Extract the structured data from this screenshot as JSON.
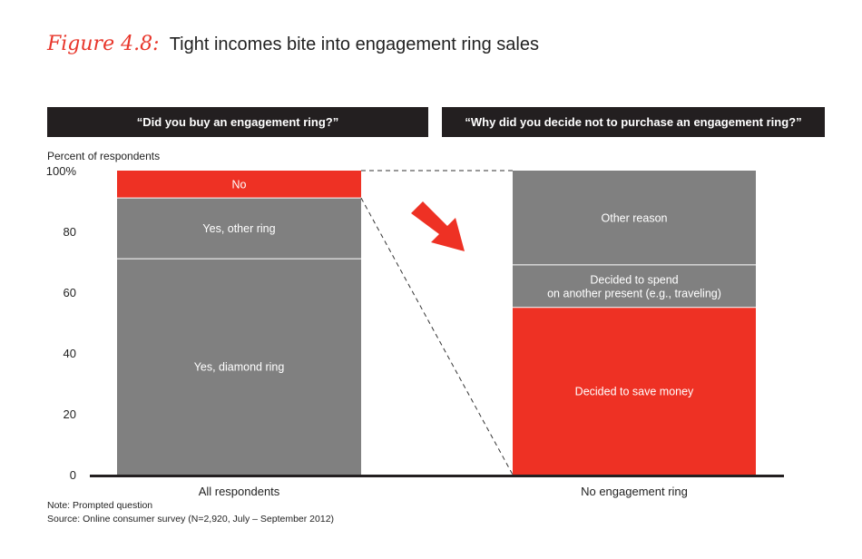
{
  "title": {
    "figure_label": "Figure 4.8:",
    "text": "Tight incomes bite into engagement ring sales"
  },
  "panels": [
    {
      "header": "“Did you buy an engagement ring?”"
    },
    {
      "header": "“Why did you decide not to purchase an engagement ring?”"
    }
  ],
  "notes": {
    "note": "Note: Prompted question",
    "source": "Source: Online consumer survey (N=2,920, July – September 2012)"
  },
  "colors": {
    "gray": "#808080",
    "red": "#ee3124",
    "axis": "#231f20",
    "header_bg": "#231f20"
  },
  "chart_data": {
    "type": "bar",
    "stacked": true,
    "ylabel": "Percent of respondents",
    "ylim": [
      0,
      100
    ],
    "yticks": [
      "0",
      "20",
      "40",
      "60",
      "80",
      "100%"
    ],
    "ytick_values": [
      0,
      20,
      40,
      60,
      80,
      100
    ],
    "categories": [
      "All respondents",
      "No engagement ring"
    ],
    "bars": [
      {
        "category": "All respondents",
        "segments": [
          {
            "label": "Yes, diamond ring",
            "value": 71,
            "color": "gray"
          },
          {
            "label": "Yes, other ring",
            "value": 20,
            "color": "gray"
          },
          {
            "label": "No",
            "value": 9,
            "color": "red"
          }
        ]
      },
      {
        "category": "No engagement ring",
        "segments": [
          {
            "label": "Decided to save money",
            "value": 55,
            "color": "red"
          },
          {
            "label": "Decided to spend\non another present (e.g., traveling)",
            "value": 14,
            "color": "gray"
          },
          {
            "label": "Other reason",
            "value": 31,
            "color": "gray"
          }
        ]
      }
    ]
  }
}
